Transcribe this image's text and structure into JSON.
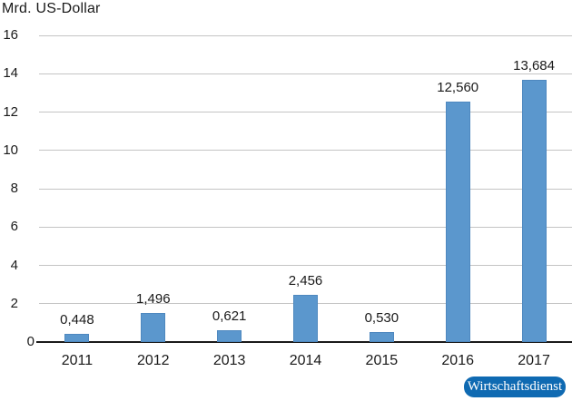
{
  "title": "Mrd. US-Dollar",
  "chart_data": {
    "type": "bar",
    "title": "Mrd. US-Dollar",
    "categories": [
      "2011",
      "2012",
      "2013",
      "2014",
      "2015",
      "2016",
      "2017"
    ],
    "values": [
      0.448,
      1.496,
      0.621,
      2.456,
      0.53,
      12.56,
      13.684
    ],
    "value_labels": [
      "0,448",
      "1,496",
      "0,621",
      "2,456",
      "0,530",
      "12,560",
      "13,684"
    ],
    "xlabel": "",
    "ylabel": "Mrd. US-Dollar",
    "ylim": [
      0,
      16
    ],
    "yticks": [
      0,
      2,
      4,
      6,
      8,
      10,
      12,
      14,
      16
    ],
    "grid": "horizontal",
    "legend": "none"
  },
  "colors": {
    "background": "#ffffff",
    "bar_fill": "#5b97cd",
    "bar_edge": "#4e88bf",
    "gridline": "#c4c4c4",
    "axis_line": "#1a1a1a",
    "text": "#1a1a1a",
    "badge_bg": "#0f6ab2",
    "badge_text": "#ffffff"
  },
  "badge": {
    "label": "Wirtschaftsdienst"
  }
}
